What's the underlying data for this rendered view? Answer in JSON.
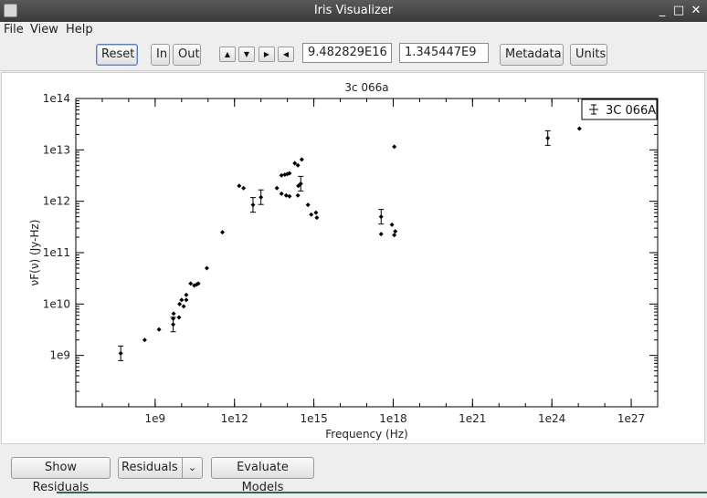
{
  "window": {
    "title": "Iris Visualizer",
    "controls": [
      "_",
      "□",
      "✕"
    ]
  },
  "menu": [
    "File",
    "View",
    "Help"
  ],
  "toolbar": {
    "reset": "Reset",
    "zoom_in": "In",
    "zoom_out": "Out",
    "x_value": "9.482829E16",
    "y_value": "1.345447E9",
    "metadata": "Metadata",
    "units": "Units"
  },
  "bottom": {
    "show_residuals": "Show Residuals",
    "residuals_select": "Residuals",
    "evaluate_models": "Evaluate Models"
  },
  "chart_data": {
    "type": "scatter",
    "title": "3c 066a",
    "xlabel": "Frequency (Hz)",
    "ylabel": "νF(ν) (Jy-Hz)",
    "x_scale": "log",
    "y_scale": "log",
    "xlim": [
      1000000.0,
      1e+28
    ],
    "ylim": [
      100000000.0,
      100000000000000.0
    ],
    "x_ticks": [
      "1e9",
      "1e12",
      "1e15",
      "1e18",
      "1e21",
      "1e24",
      "1e27"
    ],
    "y_ticks": [
      "1e9",
      "1e10",
      "1e11",
      "1e12",
      "1e13",
      "1e14"
    ],
    "legend": {
      "position": "top-right",
      "label": "3C 066A"
    },
    "series": [
      {
        "name": "3C 066A",
        "points": [
          {
            "x": 50000000.0,
            "y": 1100000000.0,
            "err": true
          },
          {
            "x": 400000000.0,
            "y": 2000000000.0
          },
          {
            "x": 1400000000.0,
            "y": 3200000000.0
          },
          {
            "x": 4800000000.0,
            "y": 4000000000.0,
            "err": true
          },
          {
            "x": 4800000000.0,
            "y": 5200000000.0
          },
          {
            "x": 5000000000.0,
            "y": 6500000000.0
          },
          {
            "x": 8000000000.0,
            "y": 5500000000.0
          },
          {
            "x": 8400000000.0,
            "y": 10000000000.0
          },
          {
            "x": 10000000000.0,
            "y": 12000000000.0
          },
          {
            "x": 12000000000.0,
            "y": 9000000000.0
          },
          {
            "x": 15000000000.0,
            "y": 15000000000.0
          },
          {
            "x": 15000000000.0,
            "y": 12000000000.0
          },
          {
            "x": 22000000000.0,
            "y": 25000000000.0
          },
          {
            "x": 30000000000.0,
            "y": 23000000000.0
          },
          {
            "x": 37000000000.0,
            "y": 24000000000.0
          },
          {
            "x": 43000000000.0,
            "y": 25000000000.0
          },
          {
            "x": 90000000000.0,
            "y": 50000000000.0
          },
          {
            "x": 350000000000.0,
            "y": 250000000000.0
          },
          {
            "x": 1500000000000.0,
            "y": 2000000000000.0
          },
          {
            "x": 2200000000000.0,
            "y": 1800000000000.0
          },
          {
            "x": 5000000000000.0,
            "y": 850000000000.0,
            "err": true
          },
          {
            "x": 10000000000000.0,
            "y": 1200000000000.0,
            "err": true
          },
          {
            "x": 40000000000000.0,
            "y": 1800000000000.0
          },
          {
            "x": 60000000000000.0,
            "y": 3200000000000.0
          },
          {
            "x": 80000000000000.0,
            "y": 3300000000000.0
          },
          {
            "x": 100000000000000.0,
            "y": 3400000000000.0
          },
          {
            "x": 120000000000000.0,
            "y": 3500000000000.0
          },
          {
            "x": 60000000000000.0,
            "y": 1400000000000.0
          },
          {
            "x": 90000000000000.0,
            "y": 1300000000000.0
          },
          {
            "x": 120000000000000.0,
            "y": 1250000000000.0
          },
          {
            "x": 190000000000000.0,
            "y": 5500000000000.0
          },
          {
            "x": 250000000000000.0,
            "y": 5000000000000.0
          },
          {
            "x": 350000000000000.0,
            "y": 6500000000000.0
          },
          {
            "x": 250000000000000.0,
            "y": 1300000000000.0
          },
          {
            "x": 260000000000000.0,
            "y": 2000000000000.0
          },
          {
            "x": 320000000000000.0,
            "y": 2200000000000.0,
            "err": true
          },
          {
            "x": 600000000000000.0,
            "y": 850000000000.0
          },
          {
            "x": 800000000000000.0,
            "y": 550000000000.0
          },
          {
            "x": 1200000000000000.0,
            "y": 600000000000.0
          },
          {
            "x": 1300000000000000.0,
            "y": 480000000000.0
          },
          {
            "x": 3.5e+17,
            "y": 500000000000.0,
            "err": true
          },
          {
            "x": 3.5e+17,
            "y": 230000000000.0
          },
          {
            "x": 9e+17,
            "y": 350000000000.0
          },
          {
            "x": 1.1e+18,
            "y": 220000000000.0
          },
          {
            "x": 1.2e+18,
            "y": 260000000000.0
          },
          {
            "x": 1.1e+18,
            "y": 11500000000000.0
          },
          {
            "x": 7e+23,
            "y": 17000000000000.0,
            "err": true
          },
          {
            "x": 1.1e+25,
            "y": 26000000000000.0
          }
        ]
      }
    ]
  }
}
